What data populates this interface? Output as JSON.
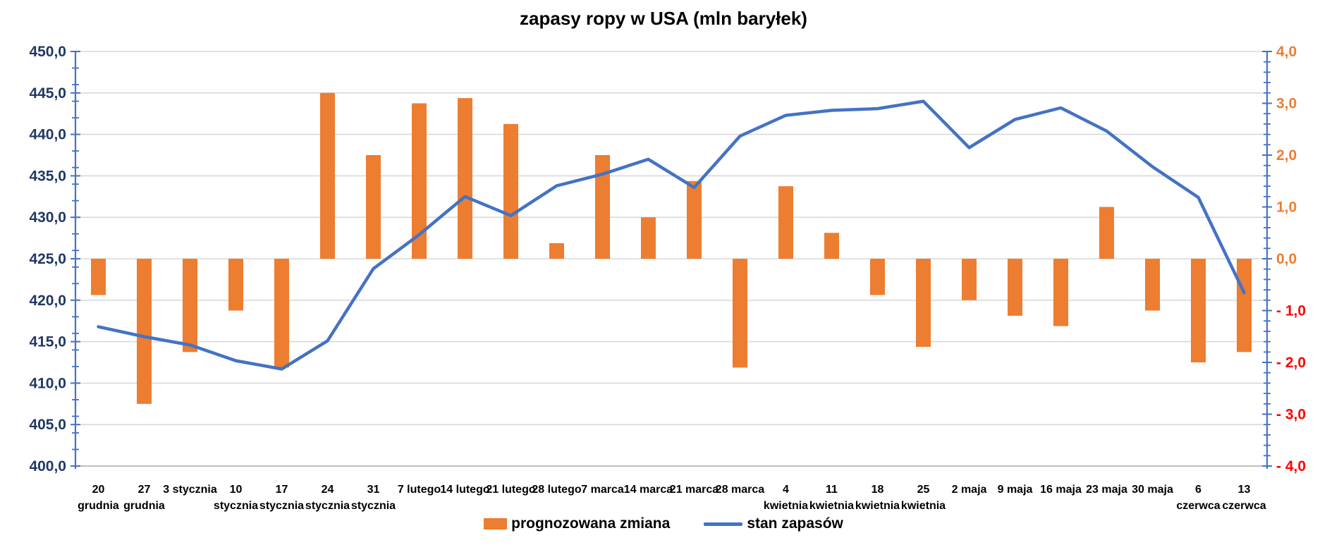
{
  "title": "zapasy ropy w USA (mln baryłek)",
  "legend": {
    "bars_label": "prognozowana zmiana",
    "line_label": "stan zapasów"
  },
  "colors": {
    "bar": "#ED7D31",
    "line": "#4472C4",
    "left_axis_text": "#203864",
    "right_axis_text_positive": "#ED7D31",
    "right_axis_text_negative": "#FF0000",
    "gridline": "#D9D9D9",
    "bottom_axis_line": "#BFBFBF",
    "vertical_axis_line": "#4472C4",
    "category_text": "#000000",
    "title_text": "#000000",
    "background": "#FFFFFF"
  },
  "left_axis": {
    "labels": [
      "450,0",
      "445,0",
      "440,0",
      "435,0",
      "430,0",
      "425,0",
      "420,0",
      "415,0",
      "410,0",
      "405,0",
      "400,0"
    ],
    "min": 400,
    "max": 450,
    "major_step": 5,
    "minor_step": 2
  },
  "right_axis": {
    "labels": [
      "4,0",
      "3,0",
      "2,0",
      "1,0",
      "0,0",
      "- 1,0",
      "- 2,0",
      "- 3,0",
      "- 4,0"
    ],
    "min": -4,
    "max": 4,
    "major_step": 1,
    "minor_step": 0.2
  },
  "chart_data": {
    "type": "bar+line combo",
    "title": "zapasy ropy w USA (mln baryłek)",
    "grid": true,
    "legend_position": "bottom",
    "left_ylim": [
      400,
      450
    ],
    "right_ylim": [
      -4,
      4
    ],
    "categories": [
      "20 grudnia",
      "27 grudnia",
      "3 stycznia",
      "10 stycznia",
      "17 stycznia",
      "24 stycznia",
      "31 stycznia",
      "7 lutego",
      "14 lutego",
      "21 lutego",
      "28 lutego",
      "7 marca",
      "14 marca",
      "21 marca",
      "28 marca",
      "4 kwietnia",
      "11 kwietnia",
      "18 kwietnia",
      "25 kwietnia",
      "2 maja",
      "9 maja",
      "16 maja",
      "23 maja",
      "30 maja",
      "6 czerwca",
      "13 czerwca"
    ],
    "category_label_lines": [
      [
        "20",
        "grudnia"
      ],
      [
        "27",
        "grudnia"
      ],
      [
        "3 stycznia"
      ],
      [
        "10",
        "stycznia"
      ],
      [
        "17",
        "stycznia"
      ],
      [
        "24",
        "stycznia"
      ],
      [
        "31",
        "stycznia"
      ],
      [
        "7 lutego"
      ],
      [
        "14 lutego"
      ],
      [
        "21 lutego"
      ],
      [
        "28 lutego"
      ],
      [
        "7 marca"
      ],
      [
        "14 marca"
      ],
      [
        "21 marca"
      ],
      [
        "28 marca"
      ],
      [
        "4",
        "kwietnia"
      ],
      [
        "11",
        "kwietnia"
      ],
      [
        "18",
        "kwietnia"
      ],
      [
        "25",
        "kwietnia"
      ],
      [
        "2 maja"
      ],
      [
        "9 maja"
      ],
      [
        "16 maja"
      ],
      [
        "23 maja"
      ],
      [
        "30 maja"
      ],
      [
        "6",
        "czerwca"
      ],
      [
        "13",
        "czerwca"
      ]
    ],
    "series": [
      {
        "name": "prognozowana zmiana",
        "type": "bar",
        "axis": "right",
        "values": [
          -0.7,
          -2.8,
          -1.8,
          -1.0,
          -2.1,
          3.2,
          2.0,
          3.0,
          3.1,
          2.6,
          0.3,
          2.0,
          0.8,
          1.5,
          -2.1,
          1.4,
          0.5,
          -0.7,
          -1.7,
          -0.8,
          -1.1,
          -1.3,
          1.0,
          -1.0,
          -2.0,
          -1.8
        ]
      },
      {
        "name": "stan zapasów",
        "type": "line",
        "axis": "left",
        "values": [
          416.8,
          415.6,
          414.6,
          412.7,
          411.7,
          415.1,
          423.8,
          427.9,
          432.5,
          430.2,
          433.8,
          435.2,
          437.0,
          433.6,
          439.8,
          442.3,
          442.9,
          443.1,
          444.0,
          438.4,
          441.8,
          443.2,
          440.4,
          436.1,
          432.4,
          420.9
        ]
      }
    ]
  }
}
